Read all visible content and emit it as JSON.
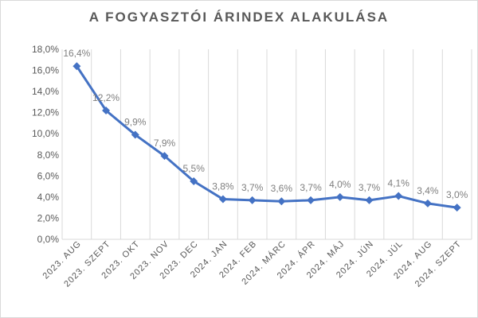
{
  "chart_data": {
    "type": "line",
    "title": "A FOGYASZTÓI ÁRINDEX ALAKULÁSA",
    "categories": [
      "2023. AUG",
      "2023. SZEPT",
      "2023. OKT",
      "2023. NOV",
      "2023. DEC",
      "2024. JAN",
      "2024. FEB",
      "2024. MÁRC",
      "2024. ÁPR",
      "2024. MÁJ",
      "2024. JÚN",
      "2024. JÚL",
      "2024. AUG",
      "2024. SZEPT"
    ],
    "series": [
      {
        "values": [
          16.4,
          12.2,
          9.9,
          7.9,
          5.5,
          3.8,
          3.7,
          3.6,
          3.7,
          4.0,
          3.7,
          4.1,
          3.4,
          3.0
        ],
        "data_labels": [
          "16,4%",
          "12,2%",
          "9,9%",
          "7,9%",
          "5,5%",
          "3,8%",
          "3,7%",
          "3,6%",
          "3,7%",
          "4,0%",
          "3,7%",
          "4,1%",
          "3,4%",
          "3,0%"
        ],
        "color": "#4472c4"
      }
    ],
    "ylim": [
      0,
      18
    ],
    "y_ticks": [
      0,
      2,
      4,
      6,
      8,
      10,
      12,
      14,
      16,
      18
    ],
    "y_tick_labels": [
      "0,0%",
      "2,0%",
      "4,0%",
      "6,0%",
      "8,0%",
      "10,0%",
      "12,0%",
      "14,0%",
      "16,0%",
      "18,0%"
    ],
    "xlabel": "",
    "ylabel": "",
    "grid": "vertical",
    "legend": "none",
    "colors": {
      "line": "#4472c4",
      "grid": "#d9d9d9",
      "text": "#595959",
      "data_label": "#7f7f7f"
    }
  }
}
